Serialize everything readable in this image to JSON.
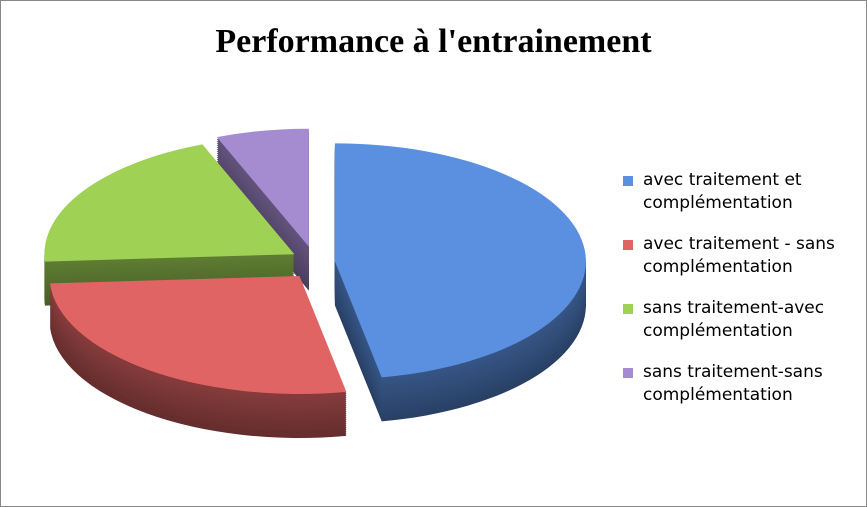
{
  "chart_data": {
    "type": "pie",
    "title": "Performance à l'entrainement",
    "categories": [
      "avec traitement et complémentation",
      "avec traitement - sans complémentation",
      "sans traitement-avec complémentation",
      "sans traitement-sans complémentation"
    ],
    "values": [
      47,
      27,
      20,
      6
    ],
    "colors": [
      "#5b8fe0",
      "#e06464",
      "#9fd155",
      "#a58bd0"
    ]
  }
}
